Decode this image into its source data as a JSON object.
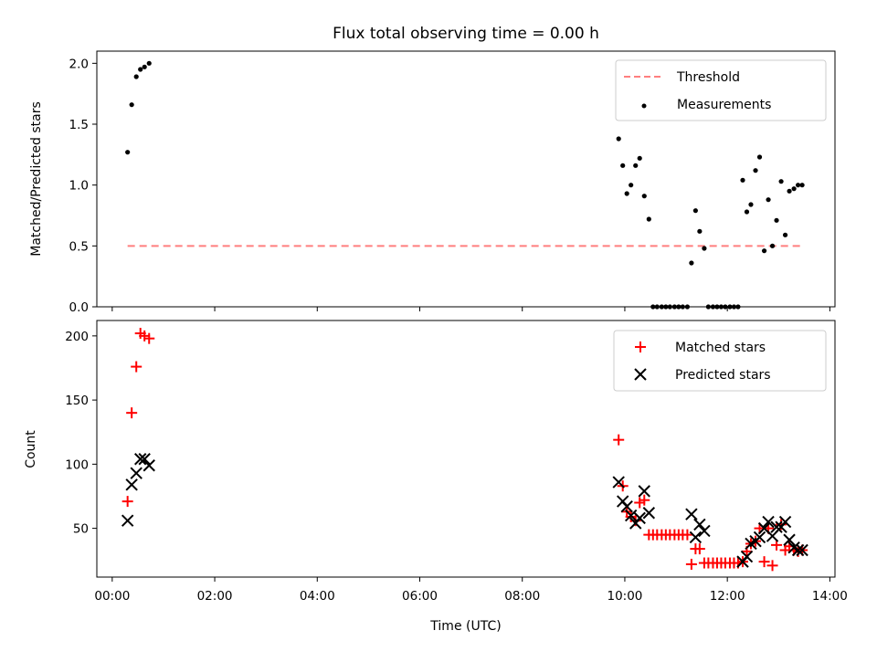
{
  "title": "Flux total observing time = 0.00 h",
  "colors": {
    "threshold": "#ff7f7f",
    "measurements": "#000000",
    "matched": "#ff0000",
    "predicted": "#000000"
  },
  "chart_data": [
    {
      "type": "scatter",
      "ylabel": "Matched/Predicted stars",
      "xlim_hours": [
        -0.3,
        14.1
      ],
      "ylim": [
        0,
        2.1
      ],
      "yticks": [
        0,
        0.5,
        1.0,
        1.5,
        2.0
      ],
      "ytick_labels": [
        "0.0",
        "0.5",
        "1.0",
        "1.5",
        "2.0"
      ],
      "xticks": [
        0,
        2,
        4,
        6,
        8,
        10,
        12,
        14
      ],
      "legend": {
        "placement": "top-right",
        "entries": [
          "Threshold",
          "Measurements"
        ]
      },
      "series": [
        {
          "name": "Threshold",
          "style": "dashed-line",
          "color": "#ff7f7f",
          "points": [
            [
              0.3,
              0.5
            ],
            [
              13.5,
              0.5
            ]
          ]
        },
        {
          "name": "Measurements",
          "style": "dot",
          "color": "#000000",
          "points": [
            [
              0.3,
              1.27
            ],
            [
              0.38,
              1.66
            ],
            [
              0.47,
              1.89
            ],
            [
              0.55,
              1.95
            ],
            [
              0.63,
              1.97
            ],
            [
              0.72,
              2.0
            ],
            [
              9.88,
              1.38
            ],
            [
              9.96,
              1.16
            ],
            [
              10.04,
              0.93
            ],
            [
              10.12,
              1.0
            ],
            [
              10.21,
              1.16
            ],
            [
              10.29,
              1.22
            ],
            [
              10.38,
              0.91
            ],
            [
              10.47,
              0.72
            ],
            [
              10.55,
              0.0
            ],
            [
              10.63,
              0.0
            ],
            [
              10.72,
              0.0
            ],
            [
              10.8,
              0.0
            ],
            [
              10.88,
              0.0
            ],
            [
              10.97,
              0.0
            ],
            [
              11.05,
              0.0
            ],
            [
              11.13,
              0.0
            ],
            [
              11.22,
              0.0
            ],
            [
              11.3,
              0.36
            ],
            [
              11.38,
              0.79
            ],
            [
              11.46,
              0.62
            ],
            [
              11.55,
              0.48
            ],
            [
              11.63,
              0.0
            ],
            [
              11.72,
              0.0
            ],
            [
              11.8,
              0.0
            ],
            [
              11.88,
              0.0
            ],
            [
              11.96,
              0.0
            ],
            [
              12.05,
              0.0
            ],
            [
              12.13,
              0.0
            ],
            [
              12.21,
              0.0
            ],
            [
              12.3,
              1.04
            ],
            [
              12.38,
              0.78
            ],
            [
              12.46,
              0.84
            ],
            [
              12.55,
              1.12
            ],
            [
              12.63,
              1.23
            ],
            [
              12.72,
              0.46
            ],
            [
              12.8,
              0.88
            ],
            [
              12.88,
              0.5
            ],
            [
              12.96,
              0.71
            ],
            [
              13.05,
              1.03
            ],
            [
              13.13,
              0.59
            ],
            [
              13.21,
              0.95
            ],
            [
              13.3,
              0.97
            ],
            [
              13.38,
              1.0
            ],
            [
              13.46,
              1.0
            ]
          ]
        }
      ]
    },
    {
      "type": "scatter",
      "ylabel": "Count",
      "xlabel": "Time (UTC)",
      "xlim_hours": [
        -0.3,
        14.1
      ],
      "ylim": [
        12,
        212
      ],
      "yticks": [
        50,
        100,
        150,
        200
      ],
      "ytick_labels": [
        "50",
        "100",
        "150",
        "200"
      ],
      "xticks": [
        0,
        2,
        4,
        6,
        8,
        10,
        12,
        14
      ],
      "xtick_labels": [
        "00:00",
        "02:00",
        "04:00",
        "06:00",
        "08:00",
        "10:00",
        "12:00",
        "14:00"
      ],
      "legend": {
        "placement": "top-right",
        "entries": [
          "Matched stars",
          "Predicted stars"
        ]
      },
      "series": [
        {
          "name": "Matched stars",
          "style": "plus",
          "color": "#ff0000",
          "points": [
            [
              0.3,
              71
            ],
            [
              0.38,
              140
            ],
            [
              0.47,
              176
            ],
            [
              0.55,
              202
            ],
            [
              0.63,
              200
            ],
            [
              0.72,
              198
            ],
            [
              9.88,
              119
            ],
            [
              9.96,
              83
            ],
            [
              10.04,
              63
            ],
            [
              10.12,
              59
            ],
            [
              10.21,
              56
            ],
            [
              10.29,
              70
            ],
            [
              10.38,
              72
            ],
            [
              10.47,
              45
            ],
            [
              10.55,
              45
            ],
            [
              10.63,
              45
            ],
            [
              10.72,
              45
            ],
            [
              10.8,
              45
            ],
            [
              10.88,
              45
            ],
            [
              10.97,
              45
            ],
            [
              11.05,
              45
            ],
            [
              11.13,
              45
            ],
            [
              11.22,
              45
            ],
            [
              11.3,
              22
            ],
            [
              11.38,
              34
            ],
            [
              11.46,
              34
            ],
            [
              11.55,
              23
            ],
            [
              11.63,
              23
            ],
            [
              11.72,
              23
            ],
            [
              11.8,
              23
            ],
            [
              11.88,
              23
            ],
            [
              11.96,
              23
            ],
            [
              12.05,
              23
            ],
            [
              12.13,
              23
            ],
            [
              12.21,
              23
            ],
            [
              12.3,
              24
            ],
            [
              12.38,
              32
            ],
            [
              12.46,
              38
            ],
            [
              12.55,
              40
            ],
            [
              12.63,
              50
            ],
            [
              12.72,
              24
            ],
            [
              12.8,
              50
            ],
            [
              12.88,
              21
            ],
            [
              12.96,
              37
            ],
            [
              13.05,
              53
            ],
            [
              13.13,
              33
            ],
            [
              13.21,
              36
            ],
            [
              13.3,
              33
            ],
            [
              13.38,
              32
            ],
            [
              13.46,
              33
            ]
          ]
        },
        {
          "name": "Predicted stars",
          "style": "x",
          "color": "#000000",
          "points": [
            [
              0.3,
              56
            ],
            [
              0.38,
              84
            ],
            [
              0.47,
              93
            ],
            [
              0.55,
              104
            ],
            [
              0.63,
              104
            ],
            [
              0.72,
              99
            ],
            [
              9.88,
              86
            ],
            [
              9.96,
              71
            ],
            [
              10.04,
              67
            ],
            [
              10.12,
              60
            ],
            [
              10.21,
              54
            ],
            [
              10.29,
              58
            ],
            [
              10.38,
              79
            ],
            [
              10.47,
              62
            ],
            [
              11.3,
              61
            ],
            [
              11.38,
              43
            ],
            [
              11.46,
              53
            ],
            [
              11.55,
              48
            ],
            [
              12.3,
              24
            ],
            [
              12.38,
              28
            ],
            [
              12.46,
              38
            ],
            [
              12.55,
              40
            ],
            [
              12.63,
              43
            ],
            [
              12.72,
              50
            ],
            [
              12.8,
              55
            ],
            [
              12.88,
              44
            ],
            [
              12.96,
              51
            ],
            [
              13.05,
              51
            ],
            [
              13.13,
              55
            ],
            [
              13.21,
              41
            ],
            [
              13.3,
              35
            ],
            [
              13.38,
              33
            ],
            [
              13.46,
              33
            ]
          ]
        }
      ]
    }
  ]
}
